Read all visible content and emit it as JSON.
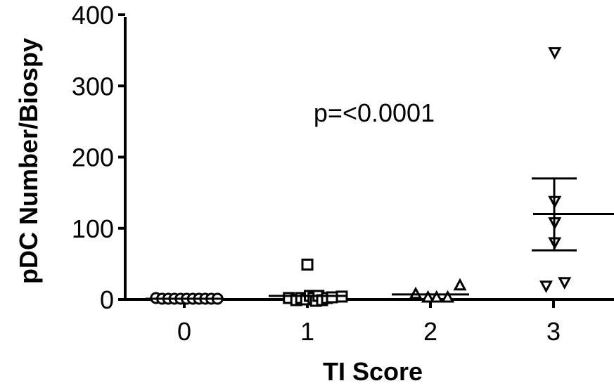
{
  "chart_data": {
    "type": "scatter",
    "title": "",
    "xlabel": "TI Score",
    "ylabel": "pDC Number/Biospy",
    "xlim": [
      -0.5,
      3.5
    ],
    "ylim": [
      0,
      400
    ],
    "x_ticks": [
      "0",
      "1",
      "2",
      "3"
    ],
    "y_ticks": [
      "0",
      "100",
      "200",
      "300",
      "400"
    ],
    "annotation": "p=<0.0001",
    "grid": false,
    "legend": "none",
    "series": [
      {
        "group": 0,
        "marker": "circle",
        "points": [
          {
            "x": -0.23,
            "y": 2
          },
          {
            "x": -0.18,
            "y": 1
          },
          {
            "x": -0.13,
            "y": 1
          },
          {
            "x": -0.08,
            "y": 1
          },
          {
            "x": -0.03,
            "y": 1
          },
          {
            "x": 0.02,
            "y": 1
          },
          {
            "x": 0.07,
            "y": 1
          },
          {
            "x": 0.12,
            "y": 1
          },
          {
            "x": 0.17,
            "y": 1
          },
          {
            "x": 0.22,
            "y": 1
          },
          {
            "x": 0.27,
            "y": 1
          }
        ]
      },
      {
        "group": 1,
        "marker": "square",
        "points": [
          {
            "x": 0.85,
            "y": 2
          },
          {
            "x": 0.91,
            "y": -1
          },
          {
            "x": 0.95,
            "y": 2
          },
          {
            "x": 0.99,
            "y": 0
          },
          {
            "x": 1.02,
            "y": 5
          },
          {
            "x": 1.05,
            "y": 2
          },
          {
            "x": 1.07,
            "y": -2
          },
          {
            "x": 1.09,
            "y": 5
          },
          {
            "x": 1.12,
            "y": -1
          },
          {
            "x": 1.16,
            "y": 2
          },
          {
            "x": 1.2,
            "y": 3
          },
          {
            "x": 1.28,
            "y": 4
          },
          {
            "x": 1.0,
            "y": 49
          }
        ]
      },
      {
        "group": 2,
        "marker": "triangle-up",
        "points": [
          {
            "x": 1.88,
            "y": 8
          },
          {
            "x": 1.98,
            "y": 3
          },
          {
            "x": 2.05,
            "y": 3
          },
          {
            "x": 2.14,
            "y": 3
          },
          {
            "x": 2.24,
            "y": 20
          }
        ]
      },
      {
        "group": 3,
        "marker": "triangle-down",
        "points": [
          {
            "x": 3.01,
            "y": 347
          },
          {
            "x": 3.01,
            "y": 138
          },
          {
            "x": 3.01,
            "y": 108
          },
          {
            "x": 3.01,
            "y": 80
          },
          {
            "x": 2.94,
            "y": 19
          },
          {
            "x": 3.09,
            "y": 24
          }
        ]
      }
    ],
    "group_stats": [
      {
        "group": 0,
        "mean": 1
      },
      {
        "group": 1,
        "mean": 5
      },
      {
        "group": 2,
        "mean": 7
      },
      {
        "group": 3,
        "mean": 120,
        "upper": 170,
        "lower": 69
      }
    ]
  }
}
